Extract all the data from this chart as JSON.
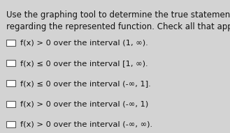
{
  "title": "Use the graphing tool to determine the true statements\nregarding the represented function. Check all that apply.",
  "items": [
    "f(x) > 0 over the interval (1, ∞).",
    "f(x) ≤ 0 over the interval [1, ∞).",
    "f(x) ≤ 0 over the interval (-∞, 1].",
    "f(x) > 0 over the interval (-∞, 1)",
    "f(x) > 0 over the interval (-∞, ∞)."
  ],
  "bg_color": "#d3d3d3",
  "text_color": "#111111",
  "title_fontsize": 8.5,
  "item_fontsize": 8.2,
  "checkbox_size": 7,
  "checkbox_color": "#ffffff",
  "checkbox_edge_color": "#555555"
}
